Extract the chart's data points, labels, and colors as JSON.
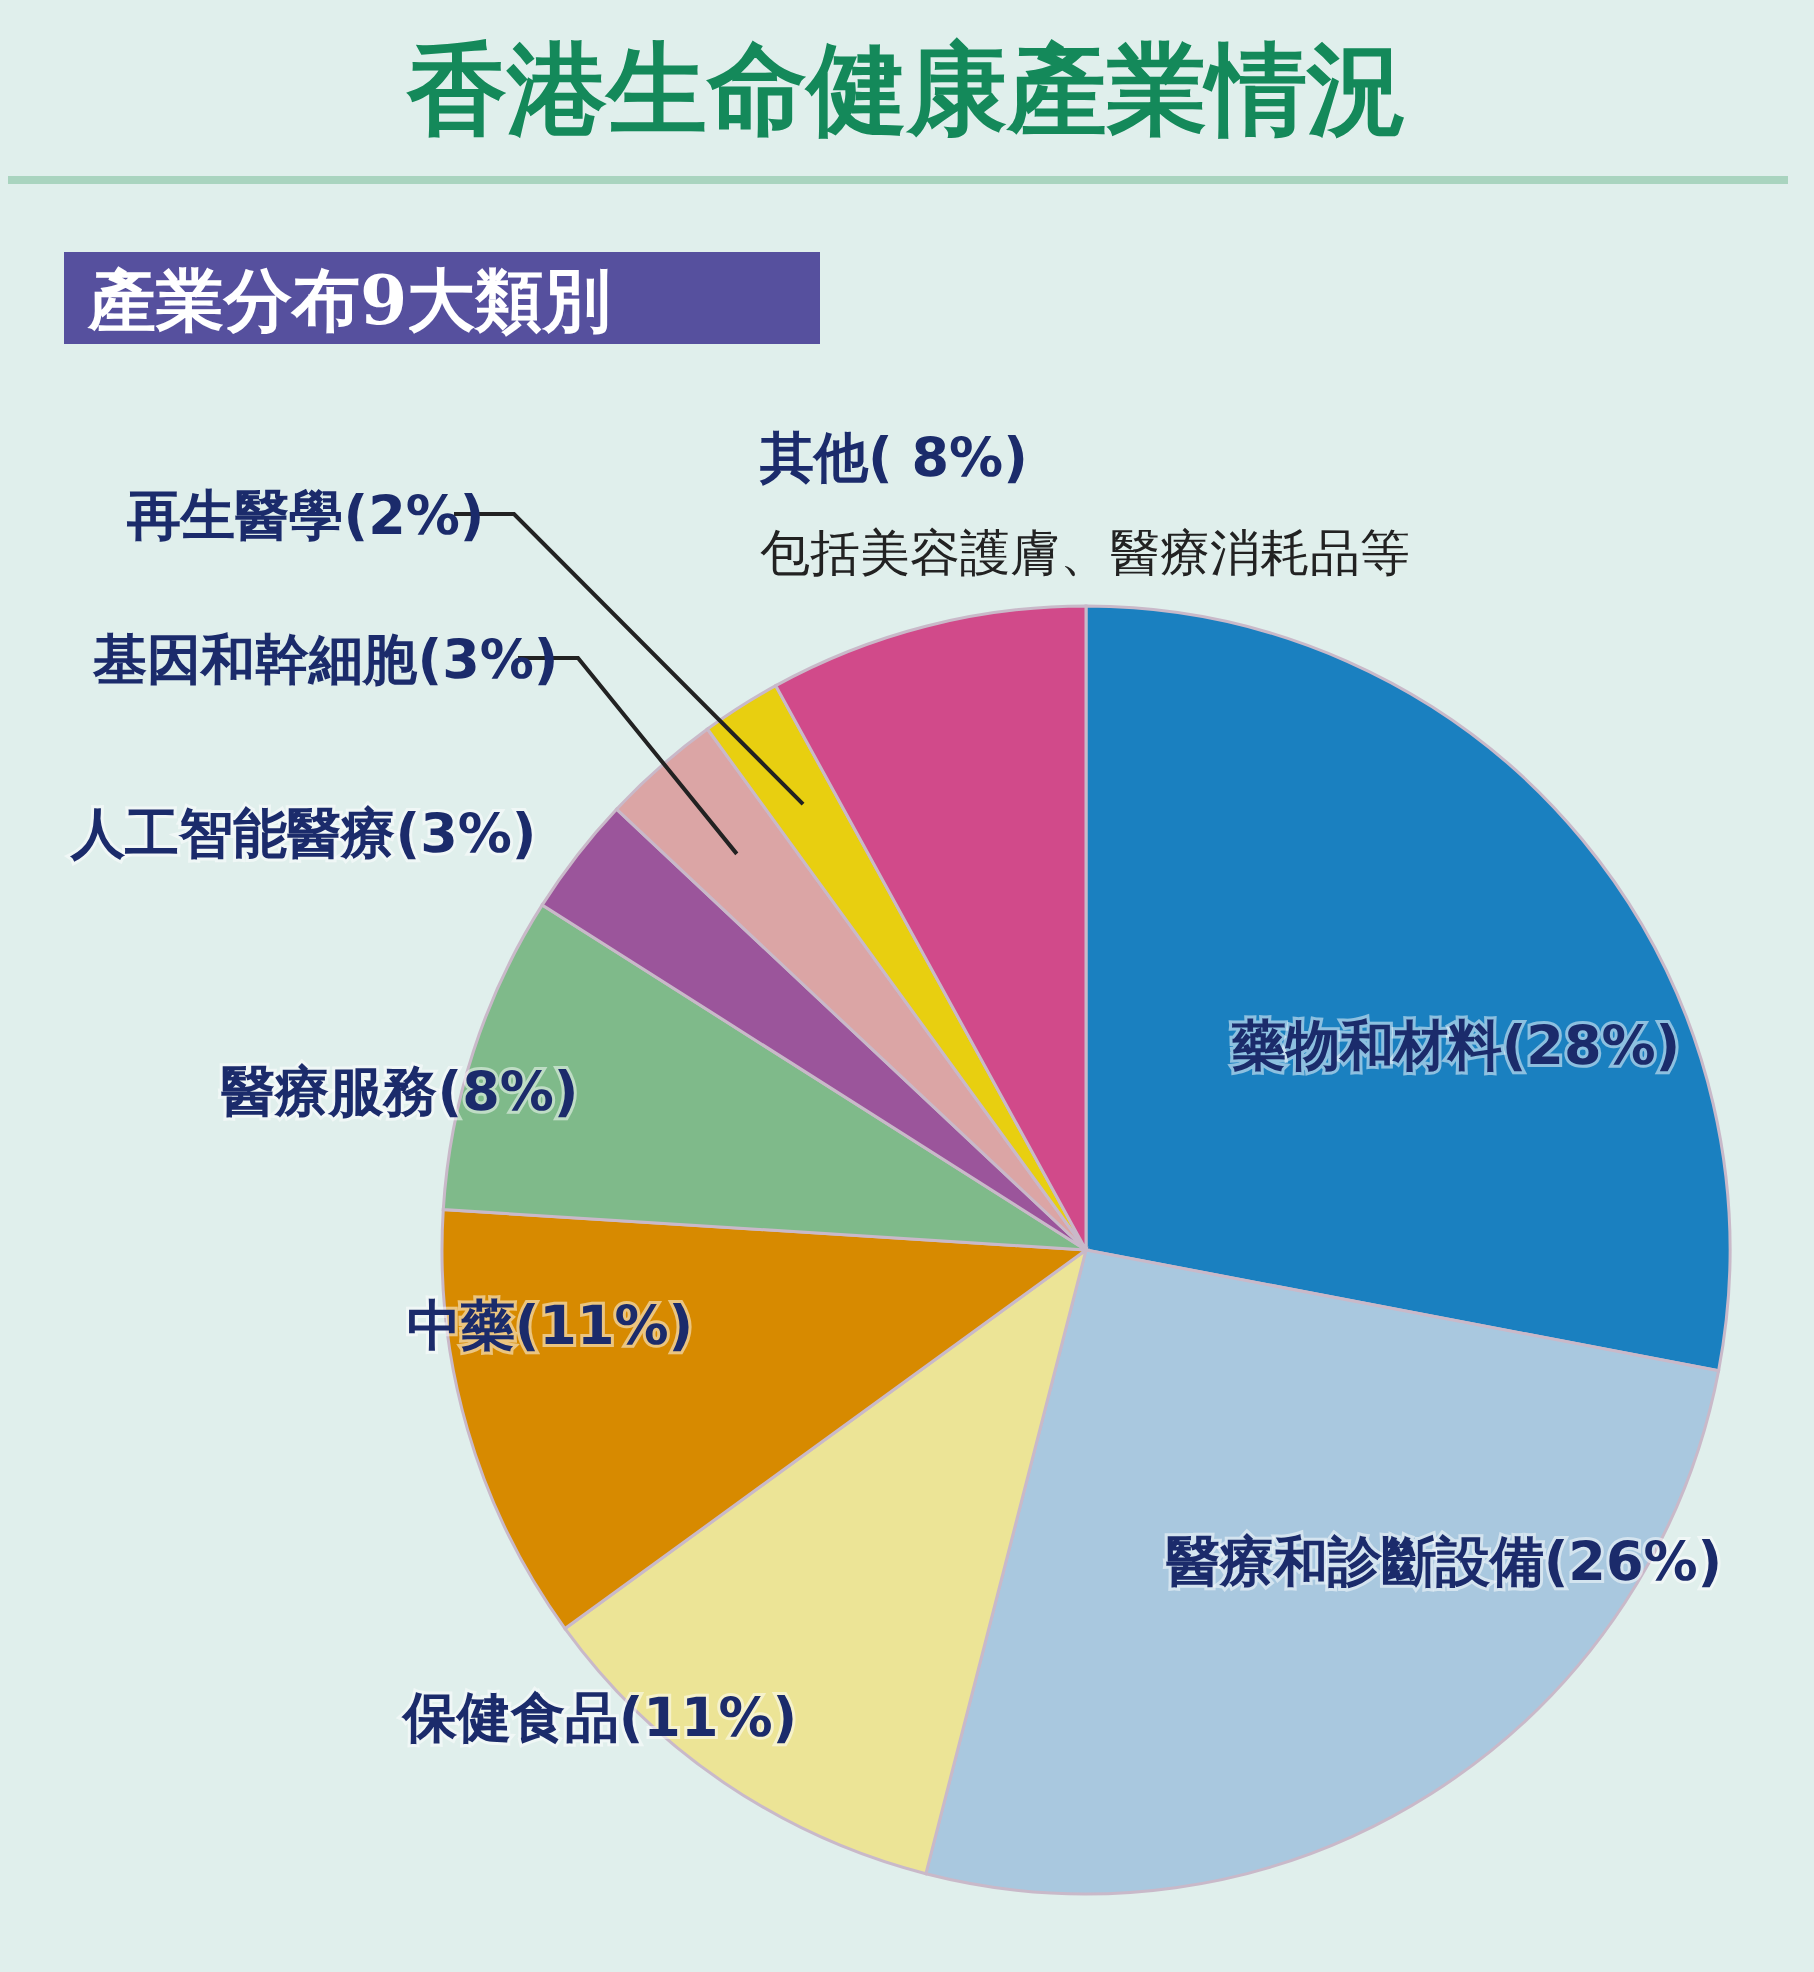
{
  "chart_data": {
    "type": "pie",
    "title": "香港生命健康產業情況",
    "subtitle": "產業分布9大類別",
    "categories": [
      "藥物和材料",
      "醫療和診斷設備",
      "保健食品",
      "中藥",
      "醫療服務",
      "人工智能醫療",
      "基因和幹細胞",
      "再生醫學",
      "其他"
    ],
    "values": [
      28,
      26,
      11,
      11,
      8,
      3,
      3,
      2,
      8
    ],
    "value_labels": [
      "(28%)",
      "(26%)",
      "(11%)",
      "(11%)",
      "(8%)",
      "(3%)",
      "(3%)",
      "(2%)",
      "( 8%)"
    ],
    "colors": [
      "#1a80c0",
      "#a9c8df",
      "#ece496",
      "#d78a00",
      "#7fba8a",
      "#9b559b",
      "#dba5a5",
      "#e8cf10",
      "#d14a8a"
    ],
    "annotations": [
      "包括美容護膚、醫療消耗品等"
    ]
  }
}
